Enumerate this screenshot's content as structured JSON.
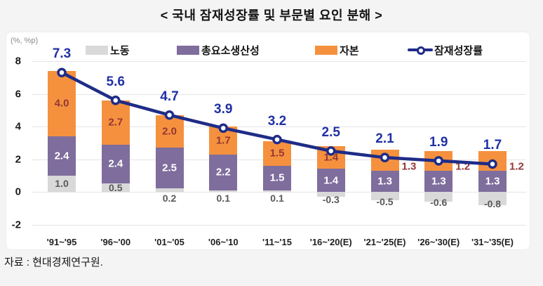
{
  "page": {
    "title": "< 국내 잠재성장률 및 부문별 요인 분해 >",
    "source": "자료 : 현대경제연구원.",
    "unit_label": "(%, %p)"
  },
  "colors": {
    "labor": "#d9d9d9",
    "tfp": "#7e6d9d",
    "capital": "#f5913e",
    "line": "#1f2c87",
    "line_label": "#2030a5",
    "capital_label": "#943634",
    "labor_label": "#595959",
    "tfp_label": "#ffffff"
  },
  "legend": {
    "items": [
      {
        "label": "노동",
        "kind": "swatch",
        "color": "#d9d9d9"
      },
      {
        "label": "총요소생산성",
        "kind": "swatch",
        "color": "#7e6d9d"
      },
      {
        "label": "자본",
        "kind": "swatch",
        "color": "#f5913e"
      },
      {
        "label": "잠재성장률",
        "kind": "line",
        "color": "#1f2c87"
      }
    ]
  },
  "chart_data": {
    "type": "bar",
    "subtype": "stacked-bar-with-line-overlay",
    "title": "< 국내 잠재성장률 및 부문별 요인 분해 >",
    "ylabel": "(%, %p)",
    "xlabel": "",
    "categories": [
      "'91~'95",
      "'96~'00",
      "'01~'05",
      "'06~'10",
      "'11~'15",
      "'16~'20(E)",
      "'21~'25(E)",
      "'26~'30(E)",
      "'31~'35(E)"
    ],
    "series": [
      {
        "name": "노동",
        "kind": "bar",
        "color": "#d9d9d9",
        "label_color": "#595959",
        "values": [
          1.0,
          0.5,
          0.2,
          0.1,
          0.1,
          -0.3,
          -0.5,
          -0.6,
          -0.8
        ]
      },
      {
        "name": "총요소생산성",
        "kind": "bar",
        "color": "#7e6d9d",
        "label_color": "#ffffff",
        "values": [
          2.4,
          2.4,
          2.5,
          2.2,
          1.5,
          1.4,
          1.3,
          1.3,
          1.3
        ]
      },
      {
        "name": "자본",
        "kind": "bar",
        "color": "#f5913e",
        "label_color": "#943634",
        "values": [
          4.0,
          2.7,
          2.0,
          1.7,
          1.5,
          1.4,
          1.3,
          1.2,
          1.2
        ],
        "label_position": [
          "in",
          "in",
          "in",
          "in",
          "in",
          "in",
          "out",
          "out",
          "out"
        ]
      },
      {
        "name": "잠재성장률",
        "kind": "line",
        "color": "#1f2c87",
        "label_color": "#2030a5",
        "values": [
          7.3,
          5.6,
          4.7,
          3.9,
          3.2,
          2.5,
          2.1,
          1.9,
          1.7
        ]
      }
    ],
    "yticks": [
      8,
      6,
      4,
      2,
      0,
      -2
    ],
    "ylim": [
      -2.9,
      8.7
    ],
    "grid": "horizontal",
    "legend_position": "top",
    "source": "자료 : 현대경제연구원."
  }
}
